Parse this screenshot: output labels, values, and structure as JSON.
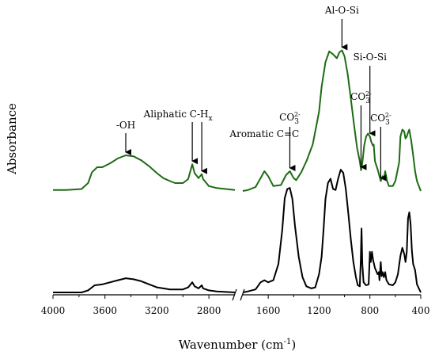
{
  "chart_data": {
    "type": "line",
    "title": "",
    "xlabel": "Wavenumber (cm",
    "xlabel_sup": "-1",
    "xlabel_close": ")",
    "ylabel": "Absorbance",
    "x_reversed": true,
    "axis_break": {
      "left_range": [
        4000,
        2600
      ],
      "right_range": [
        1800,
        400
      ]
    },
    "xticks": [
      4000,
      3600,
      3200,
      2800,
      1600,
      1200,
      800,
      400
    ],
    "yticks_shown": false,
    "legend": "none",
    "grid": false,
    "series": [
      {
        "color": "#1e6b14",
        "points": [
          [
            4000,
            0.01
          ],
          [
            3900,
            0.01
          ],
          [
            3780,
            0.02
          ],
          [
            3730,
            0.08
          ],
          [
            3700,
            0.19
          ],
          [
            3660,
            0.24
          ],
          [
            3620,
            0.24
          ],
          [
            3560,
            0.28
          ],
          [
            3500,
            0.33
          ],
          [
            3440,
            0.36
          ],
          [
            3380,
            0.35
          ],
          [
            3320,
            0.31
          ],
          [
            3260,
            0.25
          ],
          [
            3200,
            0.18
          ],
          [
            3150,
            0.13
          ],
          [
            3100,
            0.1
          ],
          [
            3060,
            0.08
          ],
          [
            3000,
            0.08
          ],
          [
            2960,
            0.12
          ],
          [
            2928,
            0.27
          ],
          [
            2910,
            0.18
          ],
          [
            2880,
            0.13
          ],
          [
            2855,
            0.17
          ],
          [
            2845,
            0.12
          ],
          [
            2800,
            0.05
          ],
          [
            2740,
            0.03
          ],
          [
            2600,
            0.01
          ],
          [
            1800,
            0.0
          ],
          [
            1760,
            0.01
          ],
          [
            1700,
            0.04
          ],
          [
            1660,
            0.13
          ],
          [
            1630,
            0.2
          ],
          [
            1600,
            0.15
          ],
          [
            1560,
            0.05
          ],
          [
            1500,
            0.06
          ],
          [
            1460,
            0.16
          ],
          [
            1430,
            0.2
          ],
          [
            1400,
            0.13
          ],
          [
            1380,
            0.11
          ],
          [
            1340,
            0.19
          ],
          [
            1300,
            0.3
          ],
          [
            1250,
            0.47
          ],
          [
            1200,
            0.8
          ],
          [
            1180,
            1.05
          ],
          [
            1150,
            1.3
          ],
          [
            1120,
            1.41
          ],
          [
            1090,
            1.38
          ],
          [
            1060,
            1.34
          ],
          [
            1040,
            1.4
          ],
          [
            1020,
            1.42
          ],
          [
            1000,
            1.36
          ],
          [
            975,
            1.18
          ],
          [
            950,
            0.93
          ],
          [
            920,
            0.62
          ],
          [
            900,
            0.43
          ],
          [
            880,
            0.3
          ],
          [
            870,
            0.21
          ],
          [
            860,
            0.28
          ],
          [
            845,
            0.46
          ],
          [
            830,
            0.55
          ],
          [
            815,
            0.58
          ],
          [
            800,
            0.55
          ],
          [
            790,
            0.5
          ],
          [
            778,
            0.46
          ],
          [
            770,
            0.47
          ],
          [
            760,
            0.3
          ],
          [
            740,
            0.22
          ],
          [
            715,
            0.1
          ],
          [
            700,
            0.15
          ],
          [
            690,
            0.12
          ],
          [
            680,
            0.2
          ],
          [
            665,
            0.1
          ],
          [
            650,
            0.05
          ],
          [
            620,
            0.05
          ],
          [
            600,
            0.1
          ],
          [
            570,
            0.29
          ],
          [
            560,
            0.55
          ],
          [
            545,
            0.62
          ],
          [
            530,
            0.6
          ],
          [
            520,
            0.53
          ],
          [
            510,
            0.55
          ],
          [
            500,
            0.59
          ],
          [
            490,
            0.62
          ],
          [
            475,
            0.51
          ],
          [
            460,
            0.36
          ],
          [
            445,
            0.2
          ],
          [
            430,
            0.1
          ],
          [
            400,
            0.0
          ]
        ]
      },
      {
        "color": "#000000",
        "points": [
          [
            4000,
            0.0
          ],
          [
            3900,
            0.0
          ],
          [
            3780,
            0.0
          ],
          [
            3730,
            0.02
          ],
          [
            3680,
            0.07
          ],
          [
            3620,
            0.08
          ],
          [
            3560,
            0.1
          ],
          [
            3500,
            0.12
          ],
          [
            3440,
            0.14
          ],
          [
            3380,
            0.13
          ],
          [
            3320,
            0.11
          ],
          [
            3260,
            0.08
          ],
          [
            3200,
            0.05
          ],
          [
            3150,
            0.04
          ],
          [
            3100,
            0.03
          ],
          [
            3060,
            0.03
          ],
          [
            3000,
            0.03
          ],
          [
            2960,
            0.05
          ],
          [
            2928,
            0.1
          ],
          [
            2910,
            0.06
          ],
          [
            2880,
            0.04
          ],
          [
            2855,
            0.07
          ],
          [
            2845,
            0.04
          ],
          [
            2800,
            0.02
          ],
          [
            2740,
            0.01
          ],
          [
            2600,
            0.0
          ],
          [
            1800,
            0.0
          ],
          [
            1760,
            0.01
          ],
          [
            1700,
            0.03
          ],
          [
            1660,
            0.1
          ],
          [
            1630,
            0.12
          ],
          [
            1600,
            0.1
          ],
          [
            1560,
            0.12
          ],
          [
            1520,
            0.28
          ],
          [
            1490,
            0.61
          ],
          [
            1470,
            0.93
          ],
          [
            1450,
            1.02
          ],
          [
            1430,
            1.03
          ],
          [
            1410,
            0.92
          ],
          [
            1390,
            0.66
          ],
          [
            1360,
            0.35
          ],
          [
            1330,
            0.15
          ],
          [
            1300,
            0.06
          ],
          [
            1260,
            0.04
          ],
          [
            1230,
            0.05
          ],
          [
            1200,
            0.18
          ],
          [
            1180,
            0.35
          ],
          [
            1165,
            0.62
          ],
          [
            1150,
            0.92
          ],
          [
            1130,
            1.08
          ],
          [
            1110,
            1.12
          ],
          [
            1090,
            1.02
          ],
          [
            1070,
            1.01
          ],
          [
            1050,
            1.12
          ],
          [
            1030,
            1.21
          ],
          [
            1010,
            1.18
          ],
          [
            990,
            1.02
          ],
          [
            970,
            0.78
          ],
          [
            950,
            0.52
          ],
          [
            930,
            0.3
          ],
          [
            910,
            0.15
          ],
          [
            895,
            0.07
          ],
          [
            880,
            0.06
          ],
          [
            872,
            0.3
          ],
          [
            866,
            0.63
          ],
          [
            860,
            0.28
          ],
          [
            850,
            0.1
          ],
          [
            830,
            0.07
          ],
          [
            810,
            0.08
          ],
          [
            800,
            0.4
          ],
          [
            793,
            0.3
          ],
          [
            784,
            0.4
          ],
          [
            775,
            0.32
          ],
          [
            760,
            0.24
          ],
          [
            740,
            0.18
          ],
          [
            730,
            0.2
          ],
          [
            725,
            0.12
          ],
          [
            715,
            0.3
          ],
          [
            708,
            0.16
          ],
          [
            700,
            0.2
          ],
          [
            690,
            0.15
          ],
          [
            680,
            0.2
          ],
          [
            670,
            0.12
          ],
          [
            650,
            0.08
          ],
          [
            620,
            0.07
          ],
          [
            600,
            0.1
          ],
          [
            580,
            0.18
          ],
          [
            560,
            0.36
          ],
          [
            545,
            0.44
          ],
          [
            530,
            0.38
          ],
          [
            520,
            0.3
          ],
          [
            510,
            0.4
          ],
          [
            500,
            0.73
          ],
          [
            490,
            0.79
          ],
          [
            480,
            0.68
          ],
          [
            470,
            0.41
          ],
          [
            460,
            0.28
          ],
          [
            445,
            0.22
          ],
          [
            430,
            0.08
          ],
          [
            400,
            0.0
          ]
        ]
      }
    ],
    "annotations": [
      {
        "id": "oh",
        "text": "-OH",
        "x": 3440,
        "series": 0
      },
      {
        "id": "aliphatic",
        "text": "Aliphatic C-H",
        "sub": "x",
        "x": 2928,
        "series": 0
      },
      {
        "id": "aliphatic2",
        "text": "",
        "x": 2855,
        "series": 0
      },
      {
        "id": "aromatic",
        "text": "Aromatic C=C",
        "x": 1630,
        "series": 0
      },
      {
        "id": "co3a",
        "text": "CO",
        "sub": "3",
        "sup": "2-",
        "x": 1430,
        "series": 0
      },
      {
        "id": "alosi",
        "text": "Al-O-Si",
        "x": 1020,
        "series": 0
      },
      {
        "id": "co3b",
        "text": "CO",
        "sub": "3",
        "sup": "2-",
        "x": 870,
        "series": 0
      },
      {
        "id": "siosi",
        "text": "Si-O-Si",
        "x": 800,
        "series": 0
      },
      {
        "id": "co3c",
        "text": "CO",
        "sub": "3",
        "sup": "2-",
        "x": 715,
        "series": 0
      }
    ]
  }
}
